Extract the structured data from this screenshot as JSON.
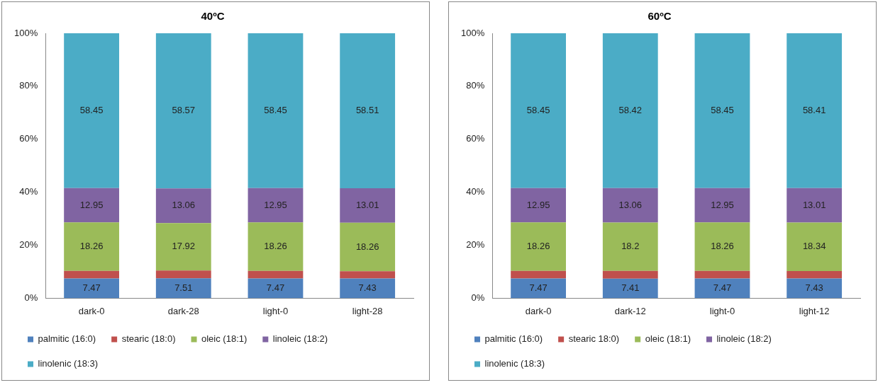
{
  "chart_data": [
    {
      "type": "bar",
      "title": "40ºC",
      "stacked": true,
      "data_labels": true,
      "grid": false,
      "legend": "bottom",
      "categories": [
        "dark-0",
        "dark-28",
        "light-0",
        "light-28"
      ],
      "ylim": [
        0,
        100
      ],
      "yticks": [
        {
          "value": 0,
          "label": "0%"
        },
        {
          "value": 20,
          "label": "20%"
        },
        {
          "value": 40,
          "label": "40%"
        },
        {
          "value": 60,
          "label": "60%"
        },
        {
          "value": 80,
          "label": "80%"
        },
        {
          "value": 100,
          "label": "100%"
        }
      ],
      "series": [
        {
          "name": "palmitic (16:0)",
          "color": "#4f81bd",
          "values": [
            7.47,
            7.51,
            7.47,
            7.43
          ]
        },
        {
          "name": "stearic (18:0)",
          "color": "#c0504d",
          "values": [
            2.87,
            2.94,
            2.87,
            2.79
          ],
          "value_labels": [
            null,
            null,
            null,
            null
          ]
        },
        {
          "name": "oleic (18:1)",
          "color": "#9bbb59",
          "values": [
            18.26,
            17.92,
            18.26,
            18.26
          ]
        },
        {
          "name": "linoleic (18:2)",
          "color": "#8064a2",
          "values": [
            12.95,
            13.06,
            12.95,
            13.01
          ]
        },
        {
          "name": "linolenic (18:3)",
          "color": "#4bacc6",
          "values": [
            58.45,
            58.57,
            58.45,
            58.51
          ]
        }
      ]
    },
    {
      "type": "bar",
      "title": "60ºC",
      "stacked": true,
      "data_labels": true,
      "grid": false,
      "legend": "bottom",
      "categories": [
        "dark-0",
        "dark-12",
        "light-0",
        "light-12"
      ],
      "ylim": [
        0,
        100
      ],
      "yticks": [
        {
          "value": 0,
          "label": "0%"
        },
        {
          "value": 20,
          "label": "20%"
        },
        {
          "value": 40,
          "label": "40%"
        },
        {
          "value": 60,
          "label": "60%"
        },
        {
          "value": 80,
          "label": "80%"
        },
        {
          "value": 100,
          "label": "100%"
        }
      ],
      "series": [
        {
          "name": "palmitic (16:0)",
          "color": "#4f81bd",
          "values": [
            7.47,
            7.41,
            7.47,
            7.43
          ]
        },
        {
          "name": "stearic 18:0)",
          "color": "#c0504d",
          "values": [
            2.87,
            2.91,
            2.87,
            2.81
          ],
          "value_labels": [
            null,
            null,
            null,
            null
          ]
        },
        {
          "name": "oleic (18:1)",
          "color": "#9bbb59",
          "values": [
            18.26,
            18.2,
            18.26,
            18.34
          ]
        },
        {
          "name": "linoleic (18:2)",
          "color": "#8064a2",
          "values": [
            12.95,
            13.06,
            12.95,
            13.01
          ]
        },
        {
          "name": "linolenic (18:3)",
          "color": "#4bacc6",
          "values": [
            58.45,
            58.42,
            58.45,
            58.41
          ]
        }
      ]
    }
  ]
}
